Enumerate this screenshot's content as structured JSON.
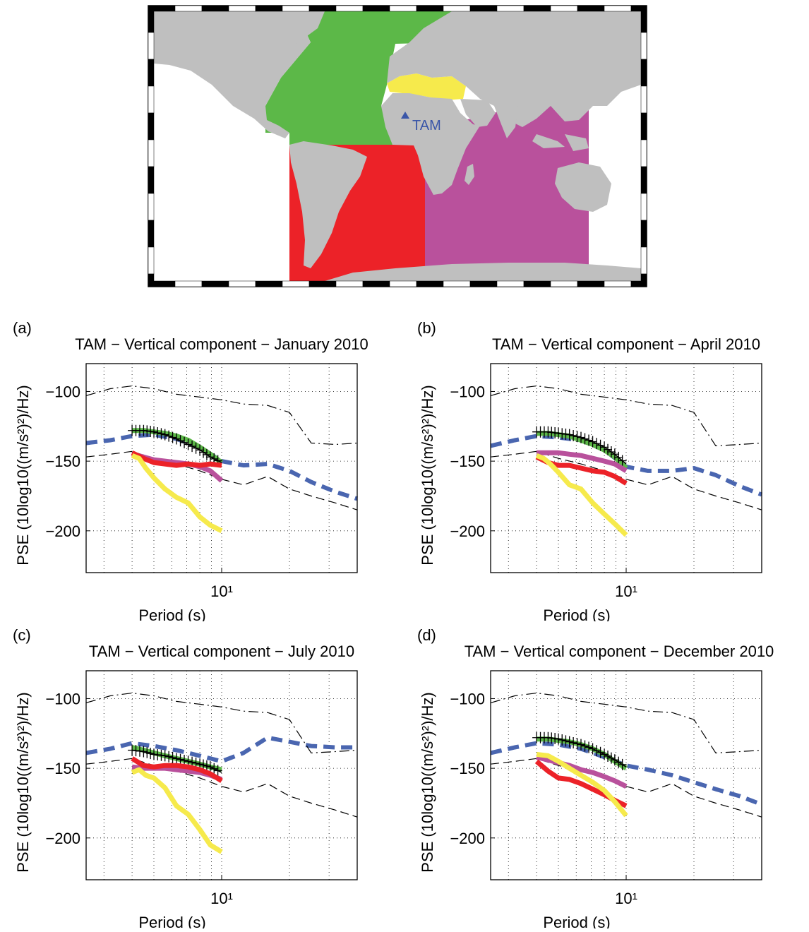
{
  "map": {
    "station_label": "TAM",
    "colors": {
      "land": "#bfbfbf",
      "north_atlantic": "#5cb848",
      "mediterranean": "#f6ea4c",
      "south_atlantic": "#ec2228",
      "indian_ocean": "#b9519c",
      "station": "#3a56a8"
    }
  },
  "chart_data": [
    {
      "type": "line",
      "panel_label": "(a)",
      "title": "TAM − Vertical component − January 2010",
      "xlabel": "Period (s)",
      "ylabel": "PSE (10log10((m/s²)²)/Hz)",
      "xscale": "log",
      "xlim": [
        2.5,
        40
      ],
      "ylim": [
        -230,
        -80
      ],
      "xticks": [
        10
      ],
      "xtick_labels": [
        "10¹"
      ],
      "yticks": [
        -100,
        -150,
        -200
      ],
      "grid": true,
      "series": [
        {
          "color": "#4a66b0",
          "style": "dashed-thick",
          "x": [
            2.5,
            3.2,
            4,
            5,
            6.3,
            8,
            10,
            12.5,
            16,
            20,
            25,
            32,
            40
          ],
          "y": [
            -137,
            -135,
            -132,
            -131,
            -134,
            -140,
            -150,
            -153,
            -152,
            -157,
            -165,
            -172,
            -177
          ]
        },
        {
          "color": "#000000",
          "style": "dashdot",
          "x": [
            2.5,
            3.2,
            4,
            5,
            6.3,
            8,
            10,
            12.5,
            16,
            20,
            25,
            32,
            40
          ],
          "y": [
            -103,
            -98,
            -96,
            -98,
            -102,
            -104,
            -106,
            -109,
            -110,
            -115,
            -137,
            -138,
            -137
          ]
        },
        {
          "color": "#000000",
          "style": "dashed",
          "x": [
            2.5,
            3.2,
            4,
            5,
            6.3,
            8,
            10,
            12.5,
            16,
            20,
            25,
            32,
            40
          ],
          "y": [
            -147,
            -145,
            -143,
            -148,
            -152,
            -157,
            -163,
            -167,
            -161,
            -170,
            -175,
            -180,
            -185
          ]
        },
        {
          "color": "#5cb848",
          "style": "thick",
          "x": [
            4,
            4.5,
            5,
            5.6,
            6.3,
            7.1,
            8,
            8.9,
            10
          ],
          "y": [
            -128,
            -128,
            -129,
            -130,
            -132,
            -135,
            -140,
            -145,
            -151
          ]
        },
        {
          "color": "#000000",
          "style": "plus",
          "x": [
            4,
            4.5,
            5,
            5.6,
            6.3,
            7.1,
            8,
            8.9,
            10
          ],
          "y": [
            -128,
            -128,
            -129,
            -131,
            -134,
            -138,
            -142,
            -147,
            -151
          ]
        },
        {
          "color": "#b9519c",
          "style": "thick",
          "x": [
            4,
            4.5,
            5,
            5.6,
            6.3,
            7.1,
            8,
            8.9,
            10
          ],
          "y": [
            -145,
            -147,
            -149,
            -150,
            -151,
            -152,
            -154,
            -157,
            -164
          ]
        },
        {
          "color": "#ec2228",
          "style": "thick",
          "x": [
            4,
            4.5,
            5,
            5.6,
            6.3,
            7.1,
            8,
            8.9,
            10
          ],
          "y": [
            -144,
            -148,
            -151,
            -152,
            -153,
            -152,
            -153,
            -152,
            -153
          ]
        },
        {
          "color": "#f6ea4c",
          "style": "thick",
          "x": [
            4,
            4.3,
            4.6,
            5,
            5.6,
            6.3,
            7.1,
            8,
            8.9,
            10
          ],
          "y": [
            -146,
            -148,
            -155,
            -162,
            -170,
            -176,
            -180,
            -190,
            -196,
            -200
          ]
        }
      ]
    },
    {
      "type": "line",
      "panel_label": "(b)",
      "title": "TAM − Vertical component − April 2010",
      "xlabel": "Period (s)",
      "ylabel": "PSE (10log10((m/s²)²)/Hz)",
      "xscale": "log",
      "xlim": [
        2.5,
        40
      ],
      "ylim": [
        -230,
        -80
      ],
      "xticks": [
        10
      ],
      "xtick_labels": [
        "10¹"
      ],
      "yticks": [
        -100,
        -150,
        -200
      ],
      "grid": true,
      "series": [
        {
          "color": "#4a66b0",
          "style": "dashed-thick",
          "x": [
            2.5,
            3.2,
            4,
            5,
            6.3,
            8,
            10,
            12.5,
            16,
            20,
            25,
            32,
            40
          ],
          "y": [
            -139,
            -135,
            -132,
            -133,
            -135,
            -142,
            -154,
            -157,
            -157,
            -155,
            -160,
            -168,
            -174
          ]
        },
        {
          "color": "#000000",
          "style": "dashdot",
          "x": [
            2.5,
            3.2,
            4,
            5,
            6.3,
            8,
            10,
            12.5,
            16,
            20,
            25,
            32,
            40
          ],
          "y": [
            -103,
            -98,
            -96,
            -98,
            -102,
            -104,
            -106,
            -109,
            -110,
            -115,
            -139,
            -138,
            -137
          ]
        },
        {
          "color": "#000000",
          "style": "dashed",
          "x": [
            2.5,
            3.2,
            4,
            5,
            6.3,
            8,
            10,
            12.5,
            16,
            20,
            25,
            32,
            40
          ],
          "y": [
            -147,
            -145,
            -143,
            -148,
            -152,
            -157,
            -163,
            -167,
            -161,
            -170,
            -175,
            -180,
            -185
          ]
        },
        {
          "color": "#5cb848",
          "style": "thick",
          "x": [
            4,
            4.5,
            5,
            5.6,
            6.3,
            7.1,
            8,
            8.9,
            10
          ],
          "y": [
            -130,
            -130,
            -131,
            -132,
            -135,
            -138,
            -142,
            -147,
            -155
          ]
        },
        {
          "color": "#000000",
          "style": "plus",
          "x": [
            4,
            4.5,
            5,
            5.6,
            6.3,
            7.1,
            8,
            8.9,
            10
          ],
          "y": [
            -129,
            -129,
            -130,
            -131,
            -133,
            -136,
            -140,
            -145,
            -152
          ]
        },
        {
          "color": "#b9519c",
          "style": "thick",
          "x": [
            4,
            4.5,
            5,
            5.6,
            6.3,
            7.1,
            8,
            8.9,
            10
          ],
          "y": [
            -144,
            -144,
            -144,
            -145,
            -146,
            -148,
            -150,
            -152,
            -157
          ]
        },
        {
          "color": "#ec2228",
          "style": "thick",
          "x": [
            4,
            4.5,
            5,
            5.6,
            6.3,
            7.1,
            8,
            8.9,
            10
          ],
          "y": [
            -147,
            -151,
            -153,
            -153,
            -155,
            -157,
            -158,
            -161,
            -166
          ]
        },
        {
          "color": "#f6ea4c",
          "style": "thick",
          "x": [
            4,
            4.3,
            4.6,
            5,
            5.6,
            6.3,
            7.1,
            8,
            8.9,
            10
          ],
          "y": [
            -146,
            -148,
            -152,
            -158,
            -167,
            -170,
            -180,
            -188,
            -195,
            -203
          ]
        }
      ]
    },
    {
      "type": "line",
      "panel_label": "(c)",
      "title": "TAM − Vertical component − July 2010",
      "xlabel": "Period (s)",
      "ylabel": "PSE (10log10((m/s²)²)/Hz)",
      "xscale": "log",
      "xlim": [
        2.5,
        40
      ],
      "ylim": [
        -230,
        -80
      ],
      "xticks": [
        10
      ],
      "xtick_labels": [
        "10¹"
      ],
      "yticks": [
        -100,
        -150,
        -200
      ],
      "grid": true,
      "series": [
        {
          "color": "#4a66b0",
          "style": "dashed-thick",
          "x": [
            2.5,
            3.2,
            4,
            5,
            6.3,
            8,
            10,
            12.5,
            16,
            20,
            25,
            32,
            40
          ],
          "y": [
            -139,
            -136,
            -132,
            -134,
            -137,
            -141,
            -145,
            -139,
            -128,
            -131,
            -134,
            -135,
            -135
          ]
        },
        {
          "color": "#000000",
          "style": "dashdot",
          "x": [
            2.5,
            3.2,
            4,
            5,
            6.3,
            8,
            10,
            12.5,
            16,
            20,
            25,
            32,
            40
          ],
          "y": [
            -103,
            -98,
            -96,
            -98,
            -102,
            -104,
            -106,
            -109,
            -110,
            -115,
            -139,
            -138,
            -137
          ]
        },
        {
          "color": "#000000",
          "style": "dashed",
          "x": [
            2.5,
            3.2,
            4,
            5,
            6.3,
            8,
            10,
            12.5,
            16,
            20,
            25,
            32,
            40
          ],
          "y": [
            -147,
            -145,
            -143,
            -148,
            -152,
            -157,
            -163,
            -167,
            -161,
            -170,
            -175,
            -180,
            -185
          ]
        },
        {
          "color": "#5cb848",
          "style": "thick",
          "x": [
            4,
            4.5,
            5,
            5.6,
            6.3,
            7.1,
            8,
            8.9,
            10
          ],
          "y": [
            -135,
            -137,
            -139,
            -141,
            -143,
            -145,
            -147,
            -149,
            -151
          ]
        },
        {
          "color": "#000000",
          "style": "plus",
          "x": [
            4,
            4.5,
            5,
            5.6,
            6.3,
            7.1,
            8,
            8.9,
            10
          ],
          "y": [
            -137,
            -138,
            -140,
            -141,
            -143,
            -145,
            -147,
            -149,
            -153
          ]
        },
        {
          "color": "#b9519c",
          "style": "thick",
          "x": [
            4,
            4.5,
            5,
            5.6,
            6.3,
            7.1,
            8,
            8.9,
            10
          ],
          "y": [
            -149,
            -150,
            -150,
            -150,
            -151,
            -152,
            -153,
            -155,
            -158
          ]
        },
        {
          "color": "#ec2228",
          "style": "thick",
          "x": [
            4,
            4.5,
            5,
            5.6,
            6.3,
            7.1,
            8,
            8.9,
            10
          ],
          "y": [
            -143,
            -148,
            -149,
            -148,
            -148,
            -149,
            -151,
            -154,
            -159
          ]
        },
        {
          "color": "#f6ea4c",
          "style": "thick",
          "x": [
            4,
            4.3,
            4.6,
            5,
            5.6,
            6.3,
            7.1,
            8,
            8.9,
            10
          ],
          "y": [
            -153,
            -151,
            -155,
            -157,
            -164,
            -177,
            -183,
            -194,
            -205,
            -210
          ]
        }
      ]
    },
    {
      "type": "line",
      "panel_label": "(d)",
      "title": "TAM − Vertical component − December 2010",
      "xlabel": "Period (s)",
      "ylabel": "PSE (10log10((m/s²)²)/Hz)",
      "xscale": "log",
      "xlim": [
        2.5,
        40
      ],
      "ylim": [
        -230,
        -80
      ],
      "xticks": [
        10
      ],
      "xtick_labels": [
        "10¹"
      ],
      "yticks": [
        -100,
        -150,
        -200
      ],
      "grid": true,
      "series": [
        {
          "color": "#4a66b0",
          "style": "dashed-thick",
          "x": [
            2.5,
            3.2,
            4,
            5,
            6.3,
            8,
            10,
            12.5,
            16,
            20,
            25,
            32,
            40
          ],
          "y": [
            -139,
            -135,
            -132,
            -133,
            -136,
            -142,
            -148,
            -151,
            -155,
            -160,
            -165,
            -170,
            -176
          ]
        },
        {
          "color": "#000000",
          "style": "dashdot",
          "x": [
            2.5,
            3.2,
            4,
            5,
            6.3,
            8,
            10,
            12.5,
            16,
            20,
            25,
            32,
            40
          ],
          "y": [
            -103,
            -98,
            -96,
            -98,
            -102,
            -104,
            -106,
            -109,
            -110,
            -115,
            -139,
            -138,
            -137
          ]
        },
        {
          "color": "#000000",
          "style": "dashed",
          "x": [
            2.5,
            3.2,
            4,
            5,
            6.3,
            8,
            10,
            12.5,
            16,
            20,
            25,
            32,
            40
          ],
          "y": [
            -147,
            -145,
            -143,
            -148,
            -152,
            -157,
            -163,
            -167,
            -161,
            -170,
            -175,
            -180,
            -185
          ]
        },
        {
          "color": "#5cb848",
          "style": "thick",
          "x": [
            4,
            4.5,
            5,
            5.6,
            6.3,
            7.1,
            8,
            8.9,
            10
          ],
          "y": [
            -129,
            -129,
            -130,
            -131,
            -133,
            -136,
            -140,
            -145,
            -150
          ]
        },
        {
          "color": "#000000",
          "style": "plus",
          "x": [
            4,
            4.5,
            5,
            5.6,
            6.3,
            7.1,
            8,
            8.9,
            10
          ],
          "y": [
            -128,
            -128,
            -129,
            -131,
            -133,
            -136,
            -140,
            -144,
            -149
          ]
        },
        {
          "color": "#b9519c",
          "style": "thick",
          "x": [
            4,
            4.5,
            5,
            5.6,
            6.3,
            7.1,
            8,
            8.9,
            10
          ],
          "y": [
            -142,
            -144,
            -146,
            -148,
            -151,
            -153,
            -156,
            -159,
            -163
          ]
        },
        {
          "color": "#ec2228",
          "style": "thick",
          "x": [
            4,
            4.5,
            5,
            5.6,
            6.3,
            7.1,
            8,
            8.9,
            10
          ],
          "y": [
            -145,
            -152,
            -157,
            -158,
            -161,
            -165,
            -169,
            -173,
            -177
          ]
        },
        {
          "color": "#f6ea4c",
          "style": "thick",
          "x": [
            4,
            4.5,
            5,
            5.6,
            6.3,
            7.1,
            8,
            8.9,
            10
          ],
          "y": [
            -140,
            -141,
            -145,
            -150,
            -155,
            -160,
            -166,
            -174,
            -184
          ]
        }
      ]
    }
  ]
}
